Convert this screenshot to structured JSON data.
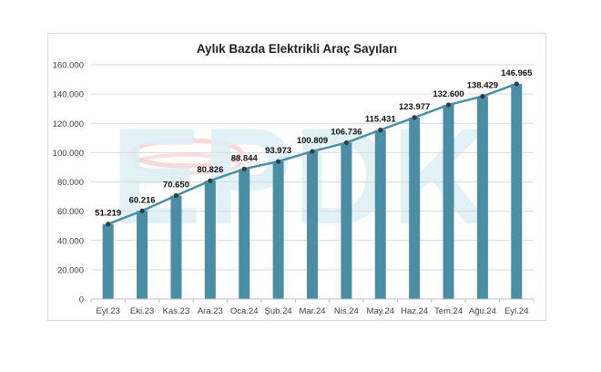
{
  "chart_data": {
    "type": "bar",
    "title": "Aylık Bazda Elektrikli Araç Sayıları",
    "xlabel": "",
    "ylabel": "",
    "categories": [
      "Eyl.23",
      "Eki.23",
      "Kas.23",
      "Ara.23",
      "Oca.24",
      "Şub.24",
      "Mar.24",
      "Nis.24",
      "May.24",
      "Haz.24",
      "Tem.24",
      "Ağu.24",
      "Eyl.24"
    ],
    "values": [
      51219,
      60216,
      70650,
      80826,
      88844,
      93973,
      100809,
      106736,
      115431,
      123977,
      132600,
      138429,
      146965
    ],
    "value_labels": [
      "51.219",
      "60.216",
      "70.650",
      "80.826",
      "88.844",
      "93.973",
      "100.809",
      "106.736",
      "115.431",
      "123.977",
      "132.600",
      "138.429",
      "146.965"
    ],
    "ylim": [
      0,
      160000
    ],
    "yticks": [
      0,
      20000,
      40000,
      60000,
      80000,
      100000,
      120000,
      140000,
      160000
    ],
    "ytick_labels": [
      "0",
      "20.000",
      "40.000",
      "60.000",
      "80.000",
      "100.000",
      "120.000",
      "140.000",
      "160.000"
    ],
    "grid": true,
    "line_overlay": true,
    "colors": {
      "bar": "#4a8ea6",
      "line": "#4a8ea6",
      "marker": "#2f3b45",
      "grid": "#d9d9d9"
    },
    "watermark": "EPDK"
  }
}
